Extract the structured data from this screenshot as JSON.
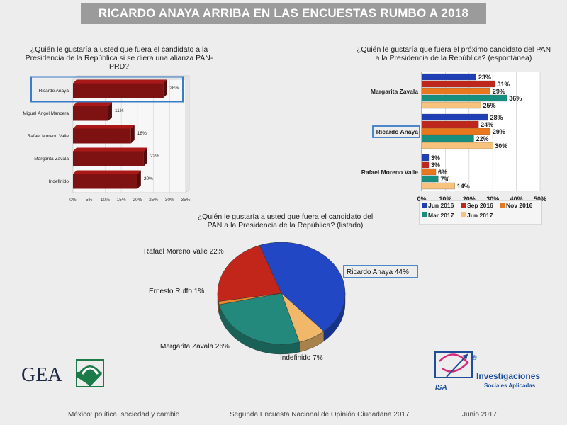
{
  "header": {
    "title": "RICARDO ANAYA ARRIBA EN LAS ENCUESTAS RUMBO A 2018"
  },
  "chart_data": [
    {
      "type": "bar",
      "orientation": "horizontal",
      "title": "¿Quién le gustaría a usted que fuera el candidato a la Presidencia de la República si se diera una alianza PAN-PRD?",
      "categories": [
        "Ricardo Anaya",
        "Miguel Ángel Mancera",
        "Rafael Moreno Valle",
        "Margarita Zavala",
        "Indefinido"
      ],
      "values": [
        28,
        11,
        18,
        22,
        20
      ],
      "value_labels": [
        "28%",
        "11%",
        "18%",
        "22%",
        "20%"
      ],
      "xlim": [
        0,
        35
      ],
      "xticks": [
        "0%",
        "5%",
        "10%",
        "15%",
        "20%",
        "25%",
        "30%",
        "35%"
      ],
      "highlight": "Ricardo Anaya",
      "bar_color": "#7e1212"
    },
    {
      "type": "bar",
      "orientation": "horizontal",
      "title": "¿Quién le gustaría que fuera el próximo candidato del PAN a la Presidencia de la República? (espontánea)",
      "categories": [
        "Margarita Zavala",
        "Ricardo Anaya",
        "Rafael Moreno Valle"
      ],
      "series": [
        {
          "name": "Jun 2016",
          "color": "#1f3fb5",
          "values": [
            23,
            28,
            3
          ],
          "labels": [
            "23%",
            "28%",
            "3%"
          ]
        },
        {
          "name": "Sep 2016",
          "color": "#c0271c",
          "values": [
            31,
            24,
            3
          ],
          "labels": [
            "31%",
            "24%",
            "3%"
          ]
        },
        {
          "name": "Nov 2016",
          "color": "#e9771e",
          "values": [
            29,
            29,
            6
          ],
          "labels": [
            "29%",
            "29%",
            "6%"
          ]
        },
        {
          "name": "Mar 2017",
          "color": "#178f7f",
          "values": [
            36,
            22,
            7
          ],
          "labels": [
            "36%",
            "22%",
            "7%"
          ]
        },
        {
          "name": "Jun 2017",
          "color": "#f6c27c",
          "values": [
            25,
            30,
            14
          ],
          "labels": [
            "25%",
            "30%",
            "14%"
          ]
        }
      ],
      "xlim": [
        0,
        50
      ],
      "xticks": [
        "0%",
        "10%",
        "20%",
        "30%",
        "40%",
        "50%"
      ],
      "legend": "bottom",
      "highlight": "Ricardo Anaya"
    },
    {
      "type": "pie",
      "title": "¿Quién le gustaría a usted que fuera el candidato del PAN a la Presidencia de la República? (listado)",
      "slices": [
        {
          "label": "Ricardo Anaya 44%",
          "value": 44,
          "color": "#2147c4"
        },
        {
          "label": "Indefinido 7%",
          "value": 7,
          "color": "#f2b86a"
        },
        {
          "label": "Margarita Zavala 26%",
          "value": 26,
          "color": "#23897c"
        },
        {
          "label": "Ernesto Ruffo 1%",
          "value": 1,
          "color": "#e68a2e"
        },
        {
          "label": "Rafael Moreno Valle 22%",
          "value": 22,
          "color": "#c2261b"
        }
      ],
      "highlight": "Ricardo Anaya 44%"
    }
  ],
  "logos": {
    "gea": "GEA",
    "isa": "ISA",
    "isa_line1": "Investigaciones",
    "isa_line2": "Sociales Aplicadas",
    "reg": "®"
  },
  "footer": {
    "left": "México: política, sociedad y cambio",
    "center": "Segunda Encuesta Nacional de Opinión Ciudadana 2017",
    "right": "Junio 2017"
  }
}
